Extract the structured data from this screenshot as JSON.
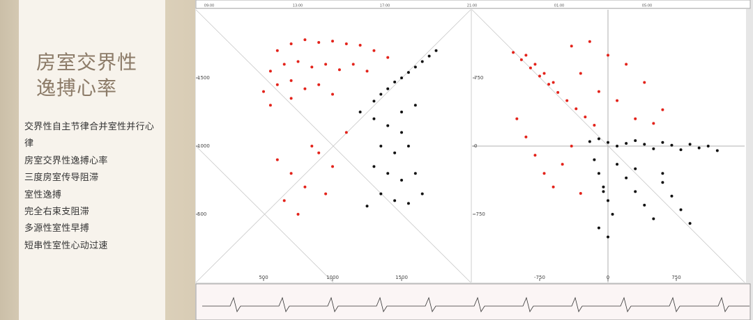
{
  "slide": {
    "title": [
      "房室交界性",
      "逸搏心率"
    ],
    "items": [
      "交界性自主节律合并室性并行心律",
      "房室交界性逸搏心率",
      "三度房室传导阻滞",
      "室性逸搏",
      "完全右束支阻滞",
      "多源性室性早搏",
      "短串性室性心动过速"
    ]
  },
  "timeline": {
    "ticks": [
      "09:00",
      "13:00",
      "17:00",
      "21:00",
      "01:00",
      "05:00"
    ]
  },
  "plots": [
    {
      "type": "scatter",
      "xlim": [
        0,
        2000
      ],
      "ylim": [
        0,
        2000
      ],
      "xticks": [
        500,
        1000,
        1500
      ],
      "yticks": [
        500,
        1000,
        1500
      ],
      "series": [
        {
          "color": "#e3231b",
          "x": [
            600,
            700,
            800,
            900,
            1000,
            1100,
            1200,
            1300,
            1400,
            550,
            650,
            750,
            850,
            950,
            1050,
            1150,
            1250,
            500,
            600,
            700,
            800,
            900,
            1000,
            550,
            700,
            600,
            700,
            800,
            650,
            900,
            1000,
            750,
            850,
            1100,
            950
          ],
          "values": [
            1700,
            1750,
            1780,
            1760,
            1770,
            1750,
            1740,
            1700,
            1650,
            1550,
            1600,
            1620,
            1580,
            1600,
            1560,
            1600,
            1550,
            1400,
            1450,
            1480,
            1420,
            1450,
            1380,
            1300,
            1350,
            900,
            800,
            700,
            600,
            950,
            850,
            500,
            1000,
            1100,
            650
          ]
        },
        {
          "color": "#111111",
          "x": [
            1200,
            1300,
            1400,
            1500,
            1600,
            1700,
            1750,
            1350,
            1450,
            1550,
            1650,
            1300,
            1400,
            1500,
            1350,
            1450,
            1550,
            1300,
            1400,
            1500,
            1600,
            1350,
            1450,
            1550,
            1650,
            1250,
            1500,
            1600
          ],
          "values": [
            1250,
            1330,
            1420,
            1500,
            1580,
            1660,
            1700,
            1380,
            1470,
            1540,
            1620,
            1200,
            1150,
            1100,
            1000,
            950,
            1000,
            850,
            800,
            750,
            800,
            650,
            600,
            580,
            650,
            560,
            1250,
            1300
          ]
        }
      ]
    },
    {
      "type": "scatter",
      "xlim": [
        -1500,
        1500
      ],
      "ylim": [
        -1500,
        1500
      ],
      "xticks": [
        -750,
        0,
        750
      ],
      "yticks": [
        -750,
        0,
        750
      ],
      "series": [
        {
          "color": "#e3231b",
          "x": [
            -1040,
            -950,
            -850,
            -750,
            -650,
            -550,
            -450,
            -350,
            -250,
            -150,
            -900,
            -800,
            -700,
            -600,
            -400,
            -200,
            0,
            200,
            400,
            600,
            -300,
            -100,
            100,
            300,
            500,
            -1000,
            -900,
            -800,
            -700,
            -600,
            -500,
            -400,
            -300
          ],
          "values": [
            1030,
            950,
            860,
            770,
            680,
            590,
            500,
            410,
            320,
            230,
            1000,
            900,
            800,
            700,
            1100,
            1150,
            1000,
            900,
            700,
            400,
            800,
            600,
            500,
            300,
            250,
            300,
            100,
            -100,
            -300,
            -450,
            -200,
            0,
            -520
          ]
        },
        {
          "color": "#111111",
          "x": [
            -200,
            -100,
            0,
            100,
            200,
            300,
            400,
            500,
            600,
            700,
            800,
            900,
            1000,
            1100,
            1200,
            -150,
            -100,
            -50,
            0,
            50,
            -100,
            0,
            -50,
            100,
            200,
            300,
            400,
            500,
            600,
            700,
            800,
            900,
            300,
            600
          ],
          "values": [
            50,
            80,
            40,
            0,
            30,
            60,
            20,
            -30,
            40,
            10,
            -40,
            20,
            -20,
            0,
            -50,
            -150,
            -300,
            -450,
            -600,
            -750,
            -900,
            -1000,
            -500,
            -200,
            -350,
            -500,
            -650,
            -800,
            -400,
            -550,
            -700,
            -850,
            -250,
            -300
          ]
        }
      ]
    }
  ]
}
